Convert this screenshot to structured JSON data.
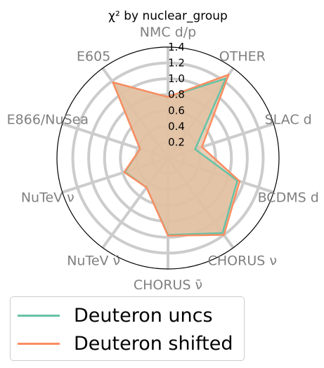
{
  "chart_data": {
    "type": "radar",
    "title": "χ² by nuclear_group",
    "categories": [
      "NMC d/p",
      "OTHER",
      "SLAC d",
      "BCDMS d",
      "CHORUS ν",
      "CHORUS ν̄",
      "NuTeV ν̄",
      "NuTeV ν",
      "E866/NuSea",
      "E605"
    ],
    "rlim": [
      0,
      1.4
    ],
    "rticks": [
      "0.2",
      "0.4",
      "0.6",
      "0.8",
      "1.0",
      "1.2",
      "1.4"
    ],
    "grid": true,
    "legend_position": "bottom-left",
    "series": [
      {
        "name": "Deuteron uncs",
        "color": "#66c2a5",
        "values": [
          0.77,
          1.24,
          0.36,
          0.92,
          1.17,
          0.97,
          0.46,
          0.57,
          0.37,
          1.18
        ]
      },
      {
        "name": "Deuteron shifted",
        "color": "#fc8d62",
        "values": [
          0.77,
          1.3,
          0.45,
          0.95,
          1.2,
          0.98,
          0.46,
          0.58,
          0.37,
          1.18
        ]
      }
    ],
    "fill_color": "#e1c0a2"
  }
}
